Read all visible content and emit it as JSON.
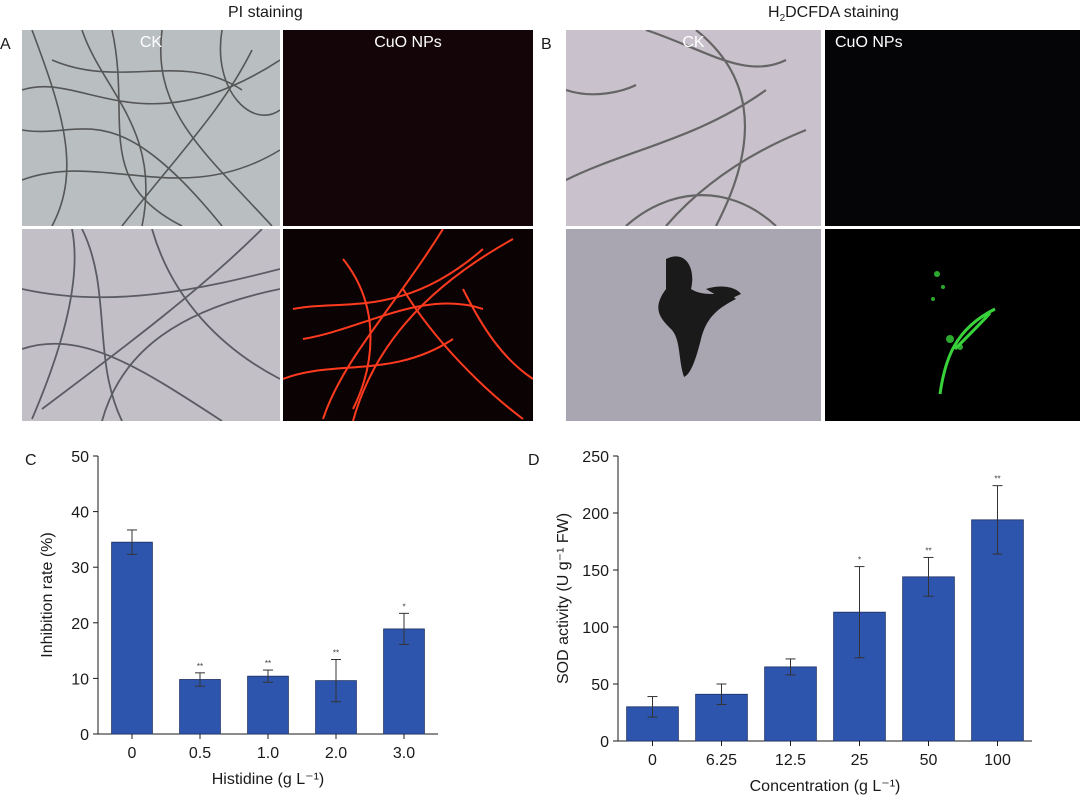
{
  "sections": {
    "left_title": "PI staining",
    "right_title_main": "H",
    "right_title_sub": "2",
    "right_title_rest": "DCFDA staining"
  },
  "panels": {
    "a": {
      "letter": "A",
      "label_ck": "CK",
      "label_np": "CuO NPs"
    },
    "b": {
      "letter": "B",
      "label_ck": "CK",
      "label_np": "CuO NPs"
    },
    "c": {
      "letter": "C"
    },
    "d": {
      "letter": "D"
    }
  },
  "colors": {
    "bar": "#2e55ad",
    "bar_edge": "#1c2f63",
    "pi_red": "#ff3b1f",
    "dcf_green": "#38d33a"
  },
  "chart_data": [
    {
      "id": "C",
      "type": "bar",
      "categories": [
        "0",
        "0.5",
        "1.0",
        "2.0",
        "3.0"
      ],
      "values": [
        34.5,
        9.8,
        10.4,
        9.6,
        18.9
      ],
      "errors": [
        2.2,
        1.2,
        1.1,
        3.8,
        2.8
      ],
      "significance": [
        "",
        "**",
        "**",
        "**",
        "*"
      ],
      "xlabel": "Histidine (g L⁻¹)",
      "ylabel": "Inhibition rate (%)",
      "ylim": [
        0,
        50
      ],
      "yticks": [
        0,
        10,
        20,
        30,
        40,
        50
      ]
    },
    {
      "id": "D",
      "type": "bar",
      "categories": [
        "0",
        "6.25",
        "12.5",
        "25",
        "50",
        "100"
      ],
      "values": [
        30,
        41,
        65,
        113,
        144,
        194
      ],
      "errors": [
        9,
        9,
        7,
        40,
        17,
        30
      ],
      "significance": [
        "",
        "",
        "",
        "*",
        "**",
        "**"
      ],
      "xlabel": "Concentration (g L⁻¹)",
      "ylabel": "SOD activity (U g⁻¹ FW)",
      "ylim": [
        0,
        250
      ],
      "yticks": [
        0,
        50,
        100,
        150,
        200,
        250
      ]
    }
  ]
}
